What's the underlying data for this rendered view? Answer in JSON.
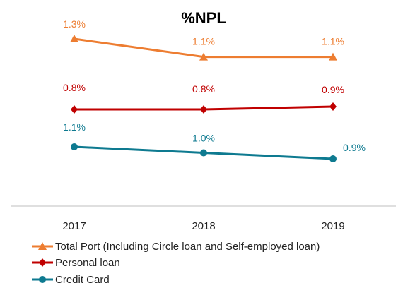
{
  "chart_data": {
    "type": "line",
    "title": "%NPL",
    "xlabel": "",
    "ylabel": "",
    "categories": [
      "2017",
      "2018",
      "2019"
    ],
    "series": [
      {
        "name": "Total Port (Including Circle loan and Self-employed loan)",
        "values": [
          1.3,
          1.1,
          1.1
        ],
        "labels": [
          "1.3%",
          "1.1%",
          "1.1%"
        ],
        "color": "#ED7D31",
        "marker": "triangle"
      },
      {
        "name": "Personal loan",
        "values": [
          0.8,
          0.8,
          0.9
        ],
        "labels": [
          "0.8%",
          "0.8%",
          "0.9%"
        ],
        "color": "#C00000",
        "marker": "diamond"
      },
      {
        "name": "Credit Card",
        "values": [
          1.1,
          1.0,
          0.9
        ],
        "labels": [
          "1.1%",
          "1.0%",
          "0.9%"
        ],
        "color": "#0E7A90",
        "marker": "circle"
      }
    ],
    "grid": false,
    "legend": "bottom-left"
  }
}
